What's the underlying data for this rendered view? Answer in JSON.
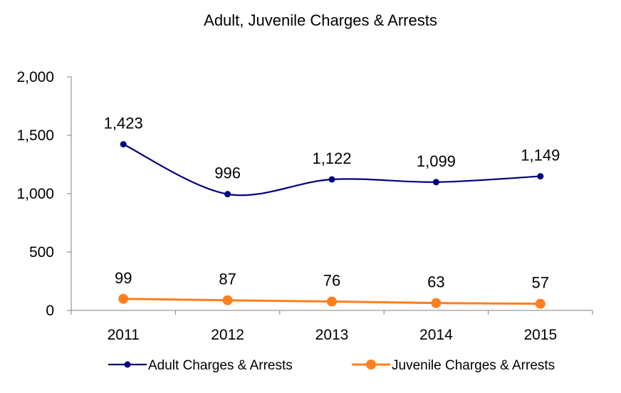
{
  "chart_data": {
    "type": "line",
    "title": "Adult, Juvenile Charges & Arrests",
    "xlabel": "",
    "ylabel": "",
    "categories": [
      "2011",
      "2012",
      "2013",
      "2014",
      "2015"
    ],
    "ylim": [
      0,
      2000
    ],
    "yticks": [
      0,
      500,
      1000,
      1500,
      2000
    ],
    "ytick_labels": [
      "0",
      "500",
      "1,000",
      "1,500",
      "2,000"
    ],
    "grid": false,
    "legend_position": "bottom",
    "series": [
      {
        "name": "Adult Charges & Arrests",
        "values": [
          1423,
          996,
          1122,
          1099,
          1149
        ],
        "data_labels": [
          "1,423",
          "996",
          "1,122",
          "1,099",
          "1,149"
        ],
        "color": "#000080",
        "smooth": true
      },
      {
        "name": "Juvenile Charges & Arrests",
        "values": [
          99,
          87,
          76,
          63,
          57
        ],
        "data_labels": [
          "99",
          "87",
          "76",
          "63",
          "57"
        ],
        "color": "#FF7F1F",
        "smooth": false
      }
    ]
  }
}
